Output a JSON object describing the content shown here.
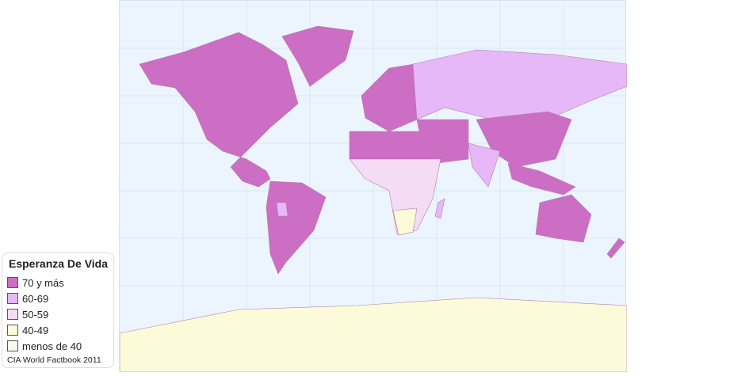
{
  "legend": {
    "title": "Esperanza De Vida",
    "items": [
      {
        "label": "70 y más",
        "color": "#cc6ec4"
      },
      {
        "label": "60-69",
        "color": "#e6b8f7"
      },
      {
        "label": "50-59",
        "color": "#f4dcf4"
      },
      {
        "label": "40-49",
        "color": "#fcfbd9"
      },
      {
        "label": "menos de 40",
        "color": "#f7f8f0"
      }
    ],
    "source": "CIA World Factbook 2011"
  },
  "colors": {
    "ocean": "#ecf5fd",
    "grid": "#d8e8f5"
  }
}
